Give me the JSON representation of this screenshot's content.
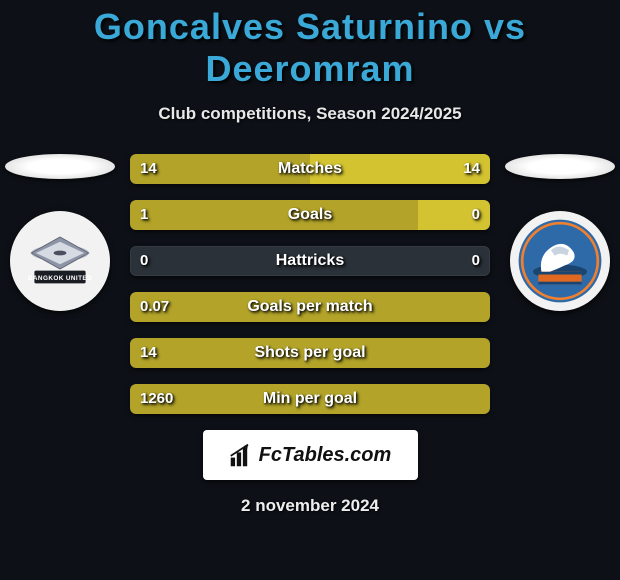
{
  "title": "Goncalves Saturnino vs Deeromram",
  "subtitle": "Club competitions, Season 2024/2025",
  "date": "2 november 2024",
  "footer_label": "FcTables.com",
  "colors": {
    "left": "#b3a429",
    "right": "#d4c330",
    "neutral": "#2a3138",
    "title": "#3aa9d8"
  },
  "stats": [
    {
      "label": "Matches",
      "left_val": "14",
      "right_val": "14",
      "left_pct": 50,
      "right_pct": 50,
      "left_on": true,
      "right_on": true
    },
    {
      "label": "Goals",
      "left_val": "1",
      "right_val": "0",
      "left_pct": 80,
      "right_pct": 20,
      "left_on": true,
      "right_on": true
    },
    {
      "label": "Hattricks",
      "left_val": "0",
      "right_val": "0",
      "left_pct": 0,
      "right_pct": 0,
      "left_on": false,
      "right_on": false
    },
    {
      "label": "Goals per match",
      "left_val": "0.07",
      "right_val": "",
      "left_pct": 100,
      "right_pct": 0,
      "left_on": true,
      "right_on": false
    },
    {
      "label": "Shots per goal",
      "left_val": "14",
      "right_val": "",
      "left_pct": 100,
      "right_pct": 0,
      "left_on": true,
      "right_on": false
    },
    {
      "label": "Min per goal",
      "left_val": "1260",
      "right_val": "",
      "left_pct": 100,
      "right_pct": 0,
      "left_on": true,
      "right_on": false
    }
  ]
}
